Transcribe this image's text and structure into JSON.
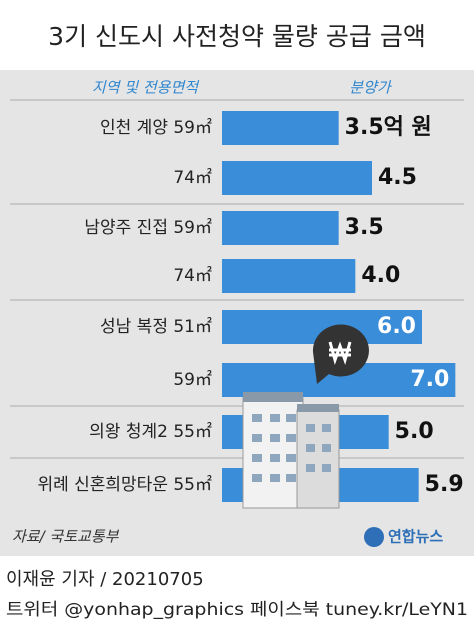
{
  "chart_data": {
    "type": "bar",
    "orientation": "horizontal",
    "title": "3기 신도시 사전청약 물량 공급 금액",
    "category_header": "지역 및 전용면적",
    "value_header": "분양가",
    "categories": [
      "인천 계양 59㎡",
      "74㎡",
      "남양주 진접 59㎡",
      "74㎡",
      "성남 복정 51㎡",
      "59㎡",
      "의왕 청계2 55㎡",
      "위례 신혼희망타운 55㎡"
    ],
    "values": [
      3.5,
      4.5,
      3.5,
      4.0,
      6.0,
      7.0,
      5.0,
      5.9
    ],
    "value_labels": [
      "3.5억 원",
      "4.5",
      "3.5",
      "4.0",
      "6.0",
      "7.0",
      "5.0",
      "5.9"
    ],
    "color": "#3a8dd8",
    "xlim": [
      0,
      7.2
    ],
    "source": "자료/ 국토교통부",
    "logo": "연합뉴스"
  },
  "footer": {
    "byline": "이재윤 기자 / 20210705",
    "social": "트위터 @yonhap_graphics  페이스북 tuney.kr/LeYN1"
  }
}
